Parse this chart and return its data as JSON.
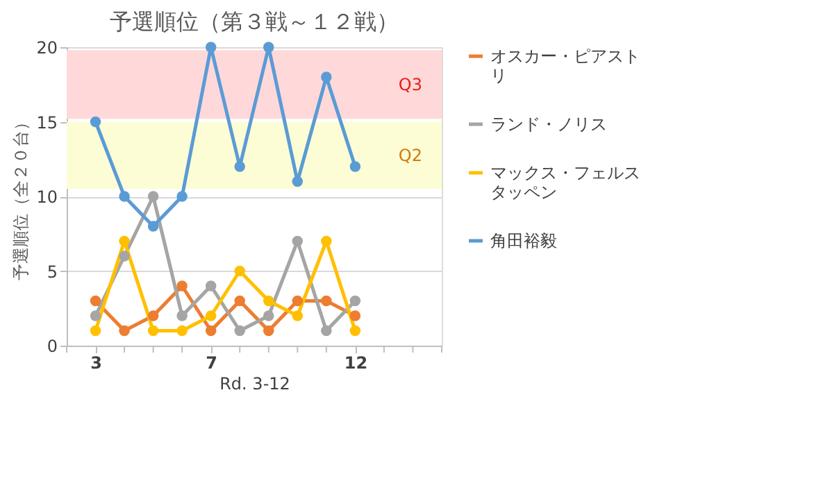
{
  "chart_data": {
    "type": "line",
    "title": "予選順位（第３戦～１２戦）",
    "xlabel": "Rd. 3-12",
    "ylabel": "予選順位（全２０台）",
    "x": [
      3,
      4,
      5,
      6,
      7,
      8,
      9,
      10,
      11,
      12
    ],
    "series": [
      {
        "name": "オスカー・ピアストリ",
        "color": "#ed7d31",
        "values": [
          3,
          1,
          2,
          4,
          1,
          3,
          1,
          3,
          3,
          2
        ]
      },
      {
        "name": "ランド・ノリス",
        "color": "#a5a5a5",
        "values": [
          2,
          6,
          10,
          2,
          4,
          1,
          2,
          7,
          1,
          3
        ]
      },
      {
        "name": "マックス・フェルスタッペン",
        "color": "#ffc000",
        "values": [
          1,
          7,
          1,
          1,
          2,
          5,
          3,
          2,
          7,
          1
        ]
      },
      {
        "name": "角田裕毅",
        "color": "#5b9bd5",
        "values": [
          15,
          10,
          8,
          10,
          20,
          12,
          20,
          11,
          18,
          12
        ]
      }
    ],
    "xlim": [
      2,
      15
    ],
    "xticks": [
      {
        "value": 2,
        "label": null
      },
      3,
      {
        "value": 4,
        "label": null
      },
      {
        "value": 5,
        "label": null
      },
      {
        "value": 6,
        "label": null
      },
      7,
      {
        "value": 8,
        "label": null
      },
      {
        "value": 9,
        "label": null
      },
      {
        "value": 10,
        "label": null
      },
      {
        "value": 11,
        "label": null
      },
      12,
      {
        "value": 13,
        "label": null
      },
      {
        "value": 14,
        "label": null
      },
      {
        "value": 15,
        "label": null
      }
    ],
    "ylim": [
      0,
      20
    ],
    "yticks": [
      0,
      5,
      10,
      15,
      20
    ],
    "bands": [
      {
        "axis": "y",
        "from": 15.2,
        "to": 19.8,
        "label": "Q3",
        "color": "#ffd9d9"
      },
      {
        "axis": "y",
        "from": 10.5,
        "to": 15,
        "label": "Q2",
        "color": "#fdfdd5"
      }
    ],
    "grid": "y",
    "legend": "right",
    "marker": "circle",
    "line_style": "solid"
  }
}
